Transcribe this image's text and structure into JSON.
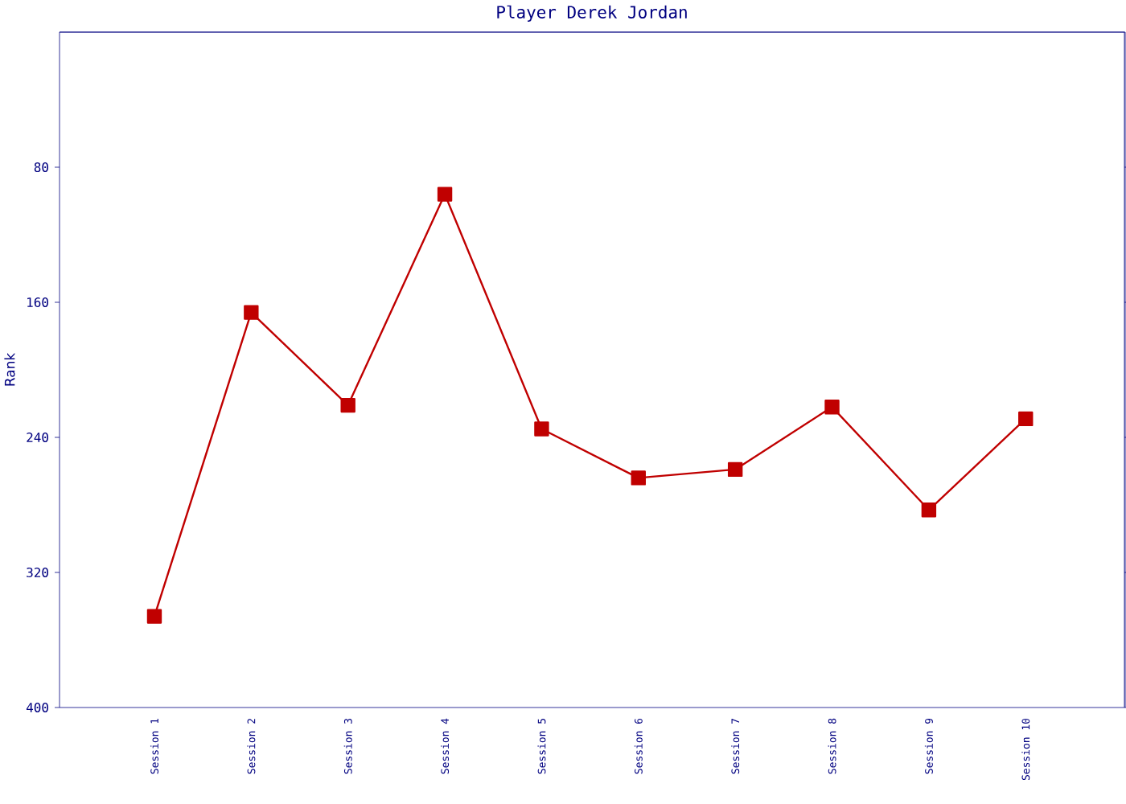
{
  "chart_data": {
    "type": "line",
    "title": "Player Derek Jordan",
    "ylabel": "Rank",
    "categories": [
      "Session 1",
      "Session 2",
      "Session 3",
      "Session 4",
      "Session 5",
      "Session 6",
      "Session 7",
      "Session 8",
      "Session 9",
      "Session 10"
    ],
    "series": [
      {
        "color": "#c00000",
        "values": [
          346,
          166,
          221,
          96,
          235,
          264,
          259,
          222,
          283,
          229
        ]
      }
    ],
    "ylim": [
      400,
      0
    ],
    "yticks": [
      80,
      160,
      240,
      320,
      400
    ],
    "grid": false,
    "legend": false,
    "marker": "square",
    "line_style": "solid"
  }
}
